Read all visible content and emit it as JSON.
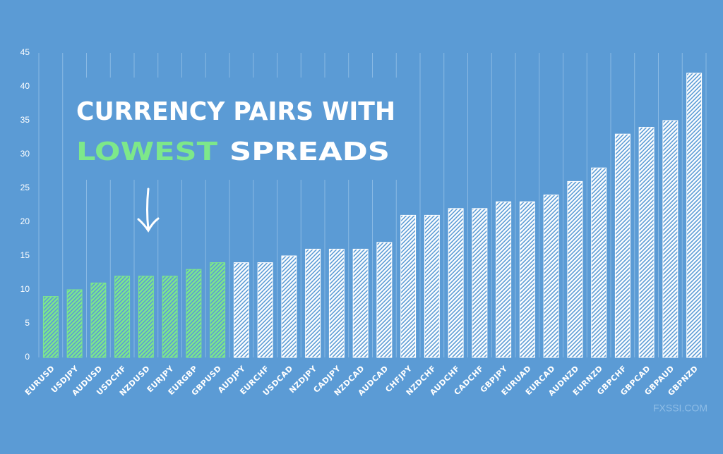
{
  "chart_data": {
    "type": "bar",
    "title": "CURRENCY PAIRS WITH",
    "title_highlight": "LOWEST",
    "title_rest": "SPREADS",
    "watermark": "FXSSI.COM",
    "categories": [
      "EURUSD",
      "USDJPY",
      "AUDUSD",
      "USDCHF",
      "NZDUSD",
      "EURJPY",
      "EURGBP",
      "GBPUSD",
      "AUDJPY",
      "EURCHF",
      "USDCAD",
      "NZDJPY",
      "CADJPY",
      "NZDCAD",
      "AUDCAD",
      "CHFJPY",
      "NZDCHF",
      "AUDCHF",
      "CADCHF",
      "GBPJPY",
      "EURUAD",
      "EURCAD",
      "AUDNZD",
      "EURNZD",
      "GBPCHF",
      "GBPCAD",
      "GBPAUD",
      "GBPNZD"
    ],
    "values": [
      9,
      10,
      11,
      12,
      12,
      12,
      13,
      14,
      14,
      14,
      15,
      16,
      16,
      16,
      17,
      21,
      21,
      22,
      22,
      23,
      23,
      24,
      26,
      28,
      33,
      34,
      35,
      42
    ],
    "colors": [
      "#7de88a",
      "#7de88a",
      "#7de88a",
      "#7de88a",
      "#7de88a",
      "#7de88a",
      "#7de88a",
      "#7de88a",
      "#ffffff",
      "#ffffff",
      "#ffffff",
      "#ffffff",
      "#ffffff",
      "#ffffff",
      "#ffffff",
      "#ffffff",
      "#ffffff",
      "#ffffff",
      "#ffffff",
      "#ffffff",
      "#ffffff",
      "#ffffff",
      "#ffffff",
      "#ffffff",
      "#ffffff",
      "#ffffff",
      "#ffffff",
      "#ffffff"
    ],
    "ylim": [
      0,
      45
    ],
    "yticks": [
      0,
      5,
      10,
      15,
      20,
      25,
      30,
      35,
      40,
      45
    ],
    "grid": true
  }
}
